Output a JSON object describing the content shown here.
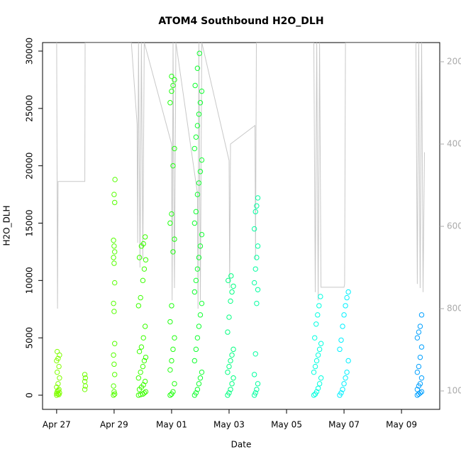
{
  "chart_data": {
    "type": "scatter",
    "title": "ATOM4 Southbound H2O_DLH",
    "x_label": "Date",
    "y_label": "H2O_DLH",
    "xlim": [
      -0.49,
      13.33
    ],
    "xticks": [
      {
        "value": 0,
        "label": "Apr 27"
      },
      {
        "value": 2,
        "label": "Apr 29"
      },
      {
        "value": 4,
        "label": "May 01"
      },
      {
        "value": 6,
        "label": "May 03"
      },
      {
        "value": 8,
        "label": "May 05"
      },
      {
        "value": 10,
        "label": "May 07"
      },
      {
        "value": 12,
        "label": "May 09"
      }
    ],
    "ylim": [
      -1237,
      30742
    ],
    "yticks": [
      0,
      5000,
      10000,
      15000,
      20000,
      25000,
      30000
    ],
    "y2lim": [
      1044.8,
      153.4
    ],
    "y2ticks": [
      200,
      400,
      600,
      800,
      1000
    ],
    "series": [
      {
        "color": "#80ff00",
        "values": [
          0,
          100,
          200,
          300,
          500,
          700,
          1000,
          1500,
          2000,
          2500,
          3000,
          3200,
          3500,
          3800,
          50,
          150,
          400
        ],
        "x": [
          0,
          0.05,
          0.1,
          0.02,
          0.08,
          0,
          0.05,
          0.1,
          0.02,
          0.08,
          0,
          0.05,
          0.1,
          0.02,
          0.08,
          0,
          0.05
        ]
      },
      {
        "color": "#70ff00",
        "values": [
          500,
          800,
          1200,
          1500,
          1800
        ],
        "x": [
          0.98,
          1.0,
          0.98,
          1.0,
          0.98
        ]
      },
      {
        "color": "#55ff00",
        "values": [
          0,
          100,
          300,
          800,
          1800,
          2700,
          3500,
          4500,
          7300,
          8000,
          9800,
          11500,
          12000,
          12500,
          13000,
          13500,
          16800,
          17500,
          18800
        ],
        "x": [
          1.98,
          2.02,
          2.0,
          1.98,
          2.02,
          2.0,
          1.98,
          2.02,
          2.0,
          1.98,
          2.02,
          2.0,
          1.98,
          2.02,
          2.0,
          1.98,
          2.02,
          2.0,
          2.03
        ]
      },
      {
        "color": "#3aff00",
        "values": [
          0,
          50,
          100,
          200,
          300,
          500,
          700,
          900,
          1200,
          1500,
          2000,
          2500,
          3000,
          3300,
          3800,
          4200,
          5000,
          6000,
          7800,
          8500,
          10000,
          11000,
          11800,
          12000,
          13000,
          13200,
          13800
        ],
        "x": [
          2.85,
          2.92,
          3.0,
          3.05,
          3.1,
          2.88,
          2.95,
          3.02,
          3.08,
          2.85,
          2.92,
          3.0,
          3.05,
          3.1,
          2.88,
          2.95,
          3.02,
          3.08,
          2.85,
          2.92,
          3.0,
          3.05,
          3.1,
          2.88,
          2.95,
          3.02,
          3.08
        ]
      },
      {
        "color": "#20ff10",
        "values": [
          0,
          100,
          300,
          1000,
          2200,
          3000,
          4000,
          5000,
          6400,
          7800,
          12500,
          13600,
          15000,
          15800,
          20000,
          21500,
          25500,
          26500,
          27000,
          27500,
          27800
        ],
        "x": [
          3.95,
          4.0,
          4.05,
          4.1,
          3.95,
          4.0,
          4.05,
          4.1,
          3.95,
          4.0,
          4.05,
          4.1,
          3.95,
          4.0,
          4.05,
          4.1,
          3.95,
          4.0,
          4.05,
          4.1,
          4.0
        ]
      },
      {
        "color": "#10ff30",
        "values": [
          0,
          200,
          500,
          1000,
          1500,
          2000,
          3000,
          4000,
          5000,
          6000,
          7000,
          8000,
          9000,
          10000,
          11000,
          12000,
          13000,
          14000,
          15000,
          16000,
          17500,
          18500,
          19500,
          20500,
          21500,
          22500,
          23500,
          24500,
          25500,
          26500,
          27000,
          28500,
          29800
        ],
        "x": [
          4.8,
          4.85,
          4.9,
          4.95,
          5.0,
          5.05,
          4.8,
          4.85,
          4.9,
          4.95,
          5.0,
          5.05,
          4.8,
          4.85,
          4.9,
          4.95,
          5.0,
          5.05,
          4.8,
          4.85,
          4.9,
          4.95,
          5.0,
          5.05,
          4.8,
          4.85,
          4.9,
          4.95,
          5.0,
          5.05,
          4.82,
          4.9,
          4.97
        ]
      },
      {
        "color": "#00ff80",
        "values": [
          0,
          200,
          500,
          1000,
          1500,
          2000,
          2500,
          3000,
          3500,
          4000,
          5500,
          6800,
          8200,
          9000,
          9500,
          10000,
          10400
        ],
        "x": [
          5.95,
          6.0,
          6.05,
          6.1,
          6.15,
          5.95,
          6.0,
          6.05,
          6.1,
          6.15,
          5.95,
          6.0,
          6.05,
          6.1,
          6.15,
          5.97,
          6.07
        ]
      },
      {
        "color": "#00ffa0",
        "values": [
          0,
          200,
          500,
          1000,
          1800,
          3600,
          8000,
          9200,
          9800,
          11000,
          12000,
          13000,
          14500,
          16000,
          16500,
          17200
        ],
        "x": [
          6.88,
          6.92,
          6.96,
          7.0,
          6.88,
          6.92,
          6.96,
          7.0,
          6.88,
          6.92,
          6.96,
          7.0,
          6.88,
          6.92,
          6.96,
          7.0
        ]
      },
      {
        "color": "#00ffe0",
        "values": [
          0,
          100,
          300,
          600,
          1000,
          1500,
          2000,
          2500,
          3000,
          3500,
          4000,
          4500,
          5000,
          6200,
          7000,
          7800,
          8600
        ],
        "x": [
          8.95,
          9.0,
          9.05,
          9.1,
          9.15,
          9.2,
          8.95,
          9.0,
          9.05,
          9.1,
          9.15,
          9.2,
          8.98,
          9.03,
          9.08,
          9.13,
          9.18
        ]
      },
      {
        "color": "#00f0ff",
        "values": [
          0,
          200,
          500,
          1000,
          1500,
          2000,
          3000,
          4000,
          4800,
          6000,
          7000,
          7800,
          8500,
          9000
        ],
        "x": [
          9.85,
          9.9,
          9.95,
          10.0,
          10.05,
          10.1,
          10.15,
          9.85,
          9.9,
          9.95,
          10.0,
          10.05,
          10.1,
          10.15
        ]
      },
      {
        "color": "#00a0ff",
        "values": [
          0,
          100,
          200,
          300,
          500,
          800,
          1000,
          1500,
          2000,
          2500,
          3300,
          4200,
          5000,
          5500,
          6000,
          7000
        ],
        "x": [
          12.55,
          12.6,
          12.65,
          12.7,
          12.55,
          12.6,
          12.65,
          12.7,
          12.55,
          12.6,
          12.65,
          12.7,
          12.55,
          12.6,
          12.65,
          12.7
        ]
      },
      {
        "type": "line",
        "axis": "y2",
        "color": "#c8c8c8",
        "x": [
          0,
          0.03,
          0.05,
          0.98,
          0.99,
          1.2,
          2.6,
          2.8,
          2.82,
          2.85,
          2.9,
          2.95,
          3.0,
          3.05,
          4.0,
          4.02,
          4.05,
          4.1,
          4.15,
          4.9,
          4.92,
          4.95,
          5.0,
          5.05,
          6.0,
          6.02,
          6.05,
          6.9,
          6.92,
          6.95,
          8.95,
          9.0,
          9.05,
          9.1,
          9.15,
          9.2,
          10.0,
          10.02,
          10.05,
          12.5,
          12.55,
          12.6,
          12.65,
          12.7,
          12.75,
          12.8
        ],
        "values": [
          153,
          800,
          491,
          491,
          153,
          153,
          153,
          352,
          640,
          153,
          700,
          153,
          680,
          153,
          400,
          780,
          153,
          750,
          153,
          520,
          800,
          153,
          780,
          153,
          440,
          750,
          400,
          355,
          680,
          153,
          153,
          760,
          153,
          780,
          153,
          748,
          748,
          740,
          153,
          153,
          740,
          153,
          750,
          153,
          760,
          420
        ]
      }
    ]
  }
}
